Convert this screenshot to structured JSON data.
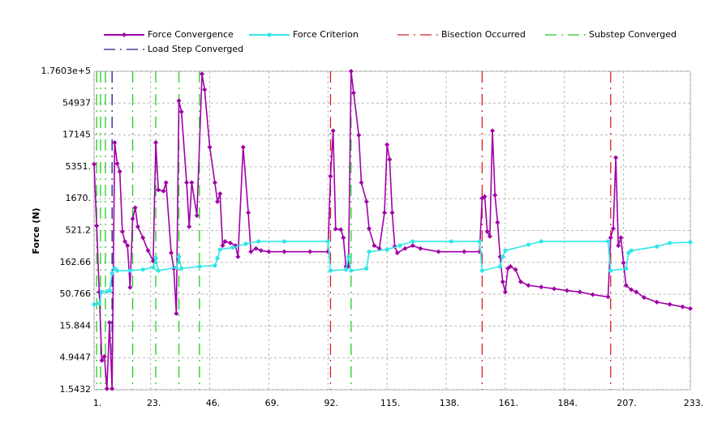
{
  "chart_data": {
    "type": "line",
    "ylabel": "Force (N)",
    "log": true,
    "grid": true,
    "xlim": [
      1,
      233
    ],
    "ylim": [
      1.5432,
      176030
    ],
    "xticks": [
      {
        "value": 1,
        "label": "1."
      },
      {
        "value": 23,
        "label": "23."
      },
      {
        "value": 46,
        "label": "46."
      },
      {
        "value": 69,
        "label": "69."
      },
      {
        "value": 92,
        "label": "92."
      },
      {
        "value": 115,
        "label": "115."
      },
      {
        "value": 138,
        "label": "138."
      },
      {
        "value": 161,
        "label": "161."
      },
      {
        "value": 184,
        "label": "184."
      },
      {
        "value": 207,
        "label": "207."
      },
      {
        "value": 233,
        "label": "233."
      }
    ],
    "yticks": [
      1.5432,
      4.9447,
      15.844,
      50.766,
      162.66,
      521.2,
      {
        "value": 1670,
        "label": "1670."
      },
      {
        "value": 5351,
        "label": "5351."
      },
      17145,
      54937,
      {
        "value": 176030,
        "label": "1.7603e+5"
      }
    ],
    "series": [
      {
        "name": "Force Convergence",
        "color": "#a000a8",
        "x": [
          1,
          2,
          3,
          4,
          5,
          6,
          7,
          8,
          9,
          10,
          11,
          12,
          13,
          14,
          15,
          16,
          17,
          18,
          20,
          22,
          24,
          25,
          26,
          28,
          29,
          31,
          32,
          33,
          34,
          35,
          37,
          38,
          39,
          41,
          43,
          44,
          46,
          48,
          49,
          50,
          51,
          52,
          54,
          56,
          57,
          59,
          61,
          62,
          64,
          66,
          69,
          75,
          85,
          92,
          93,
          94,
          95,
          97,
          98,
          99,
          100,
          101,
          102,
          104,
          105,
          107,
          108,
          110,
          112,
          114,
          115,
          116,
          117,
          118,
          119,
          122,
          125,
          128,
          135,
          145,
          151,
          152,
          153,
          154,
          155,
          156,
          157,
          158,
          159,
          160,
          161,
          162,
          163,
          165,
          167,
          170,
          175,
          180,
          185,
          190,
          195,
          201,
          202,
          203,
          204,
          205,
          206,
          207,
          208,
          210,
          212,
          215,
          220,
          225,
          230,
          233
        ],
        "values": [
          5900,
          620,
          55,
          4.5,
          5.2,
          1.6,
          18,
          1.6,
          13000,
          6000,
          4500,
          500,
          350,
          300,
          65,
          800,
          1200,
          600,
          400,
          250,
          170,
          13000,
          2300,
          2200,
          3000,
          230,
          130,
          25,
          60000,
          40000,
          3000,
          600,
          3000,
          900,
          160000,
          90000,
          11000,
          3000,
          1500,
          2000,
          300,
          350,
          330,
          300,
          200,
          11000,
          1000,
          240,
          270,
          250,
          240,
          240,
          240,
          240,
          3800,
          20000,
          550,
          540,
          400,
          140,
          140,
          176030,
          80000,
          17000,
          3000,
          1500,
          560,
          300,
          270,
          1000,
          12000,
          7000,
          1000,
          290,
          230,
          270,
          300,
          270,
          240,
          240,
          240,
          1700,
          1800,
          500,
          420,
          20000,
          1900,
          700,
          200,
          80,
          55,
          130,
          140,
          125,
          80,
          70,
          66,
          62,
          58,
          55,
          50,
          46,
          400,
          560,
          7500,
          300,
          400,
          160,
          70,
          60,
          55,
          45,
          38,
          35,
          32,
          30
        ]
      },
      {
        "name": "Force Criterion",
        "color": "#33e6e6",
        "x": [
          1,
          3,
          4,
          6,
          7,
          8,
          9,
          10,
          15,
          20,
          24,
          25,
          26,
          33,
          34,
          35,
          42,
          48,
          49,
          50,
          55,
          60,
          65,
          75,
          92,
          93,
          99,
          100,
          101,
          107,
          108,
          115,
          120,
          125,
          140,
          151,
          152,
          159,
          160,
          161,
          170,
          175,
          201,
          202,
          208,
          209,
          210,
          220,
          225,
          233
        ],
        "values": [
          35,
          36,
          55,
          56,
          58,
          110,
          130,
          120,
          120,
          125,
          135,
          190,
          120,
          135,
          200,
          130,
          140,
          145,
          190,
          260,
          280,
          320,
          350,
          350,
          350,
          120,
          125,
          200,
          120,
          130,
          240,
          260,
          300,
          350,
          350,
          350,
          120,
          140,
          200,
          250,
          310,
          350,
          350,
          120,
          130,
          230,
          250,
          290,
          330,
          340
        ]
      }
    ],
    "vlines": [
      {
        "name": "Bisection Occurred",
        "color": "#d62020",
        "x": [
          93,
          152,
          202
        ]
      },
      {
        "name": "Substep Converged",
        "color": "#22cc22",
        "x": [
          2,
          3.5,
          5.4,
          16,
          25,
          34,
          42,
          101
        ]
      },
      {
        "name": "Load Step Converged",
        "color": "#1a1a8c",
        "x": [
          8
        ]
      }
    ]
  }
}
